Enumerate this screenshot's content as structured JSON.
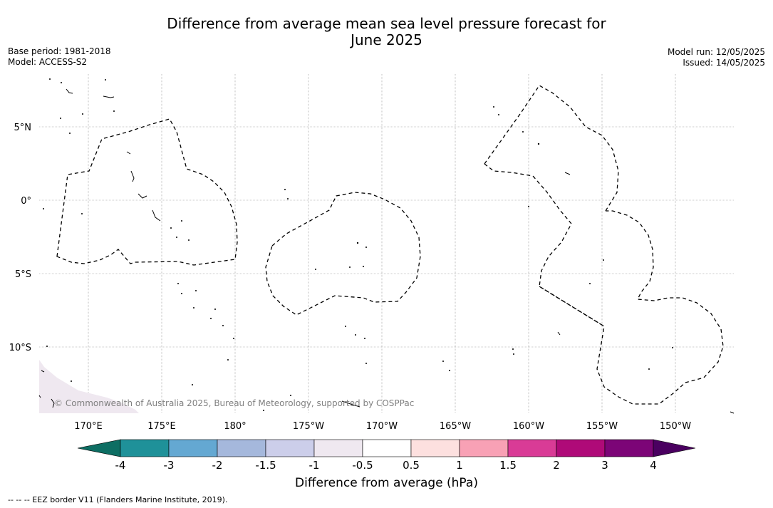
{
  "title_line1": "Difference from average mean sea level pressure forecast for",
  "title_line2": "June 2025",
  "meta": {
    "base_period": "Base period: 1981-2018",
    "model": "Model: ACCESS-S2",
    "model_run": "Model run: 12/05/2025",
    "issued": "Issued: 14/05/2025"
  },
  "map": {
    "lon_ticks": [
      {
        "lon": 170,
        "label": "170°E"
      },
      {
        "lon": 175,
        "label": "175°E"
      },
      {
        "lon": 180,
        "label": "180°"
      },
      {
        "lon": 185,
        "label": "175°W"
      },
      {
        "lon": 190,
        "label": "170°W"
      },
      {
        "lon": 195,
        "label": "165°W"
      },
      {
        "lon": 200,
        "label": "160°W"
      },
      {
        "lon": 205,
        "label": "155°W"
      },
      {
        "lon": 210,
        "label": "150°W"
      }
    ],
    "lat_ticks": [
      {
        "lat": 5,
        "label": "5°N"
      },
      {
        "lat": 0,
        "label": "0°"
      },
      {
        "lat": -5,
        "label": "5°S"
      },
      {
        "lat": -10,
        "label": "10°S"
      }
    ],
    "copyright": "© Commonwealth of Australia 2025, Bureau of Meteorology, supported by COSPPac"
  },
  "colorbar": {
    "colors": [
      "#0d6e63",
      "#1f9199",
      "#64a8d2",
      "#a5b8dc",
      "#ccceea",
      "#efe8f0",
      "#ffffff",
      "#fde0df",
      "#f8a1b5",
      "#d93b96",
      "#af0a78",
      "#7c0577",
      "#4a0060"
    ],
    "labels": [
      "-4",
      "-3",
      "-2",
      "-1.5",
      "-1",
      "-0.5",
      "0.5",
      "1",
      "1.5",
      "2",
      "3",
      "4"
    ],
    "label": "Difference from average (hPa)"
  },
  "footnote": "--  --  -- EEZ border V11 (Flanders Marine Institute, 2019)."
}
